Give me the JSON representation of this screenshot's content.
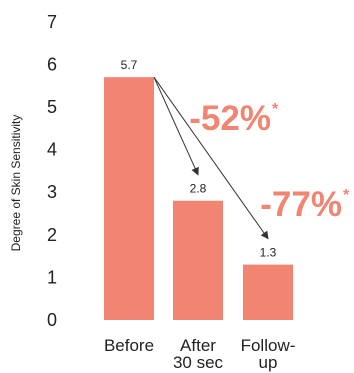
{
  "chart_data": {
    "type": "bar",
    "ylabel": "Degree of Skin Sensitivity",
    "ylim": [
      0,
      7
    ],
    "yticks": [
      "0",
      "1",
      "2",
      "3",
      "4",
      "5",
      "6",
      "7"
    ],
    "categories": [
      [
        "Before"
      ],
      [
        "After",
        "30 sec"
      ],
      [
        "Follow-",
        "up"
      ]
    ],
    "values": [
      5.7,
      2.8,
      1.3
    ],
    "data_labels": [
      "5.7",
      "2.8",
      "1.3"
    ],
    "annotations": [
      {
        "text": "-52%",
        "mark": "*",
        "from": 0,
        "to": 1
      },
      {
        "text": "-77%",
        "mark": "*",
        "from": 0,
        "to": 2
      }
    ],
    "bar_color": "#f28472",
    "annotation_color": "#f28472",
    "arrow_color": "#333333"
  }
}
